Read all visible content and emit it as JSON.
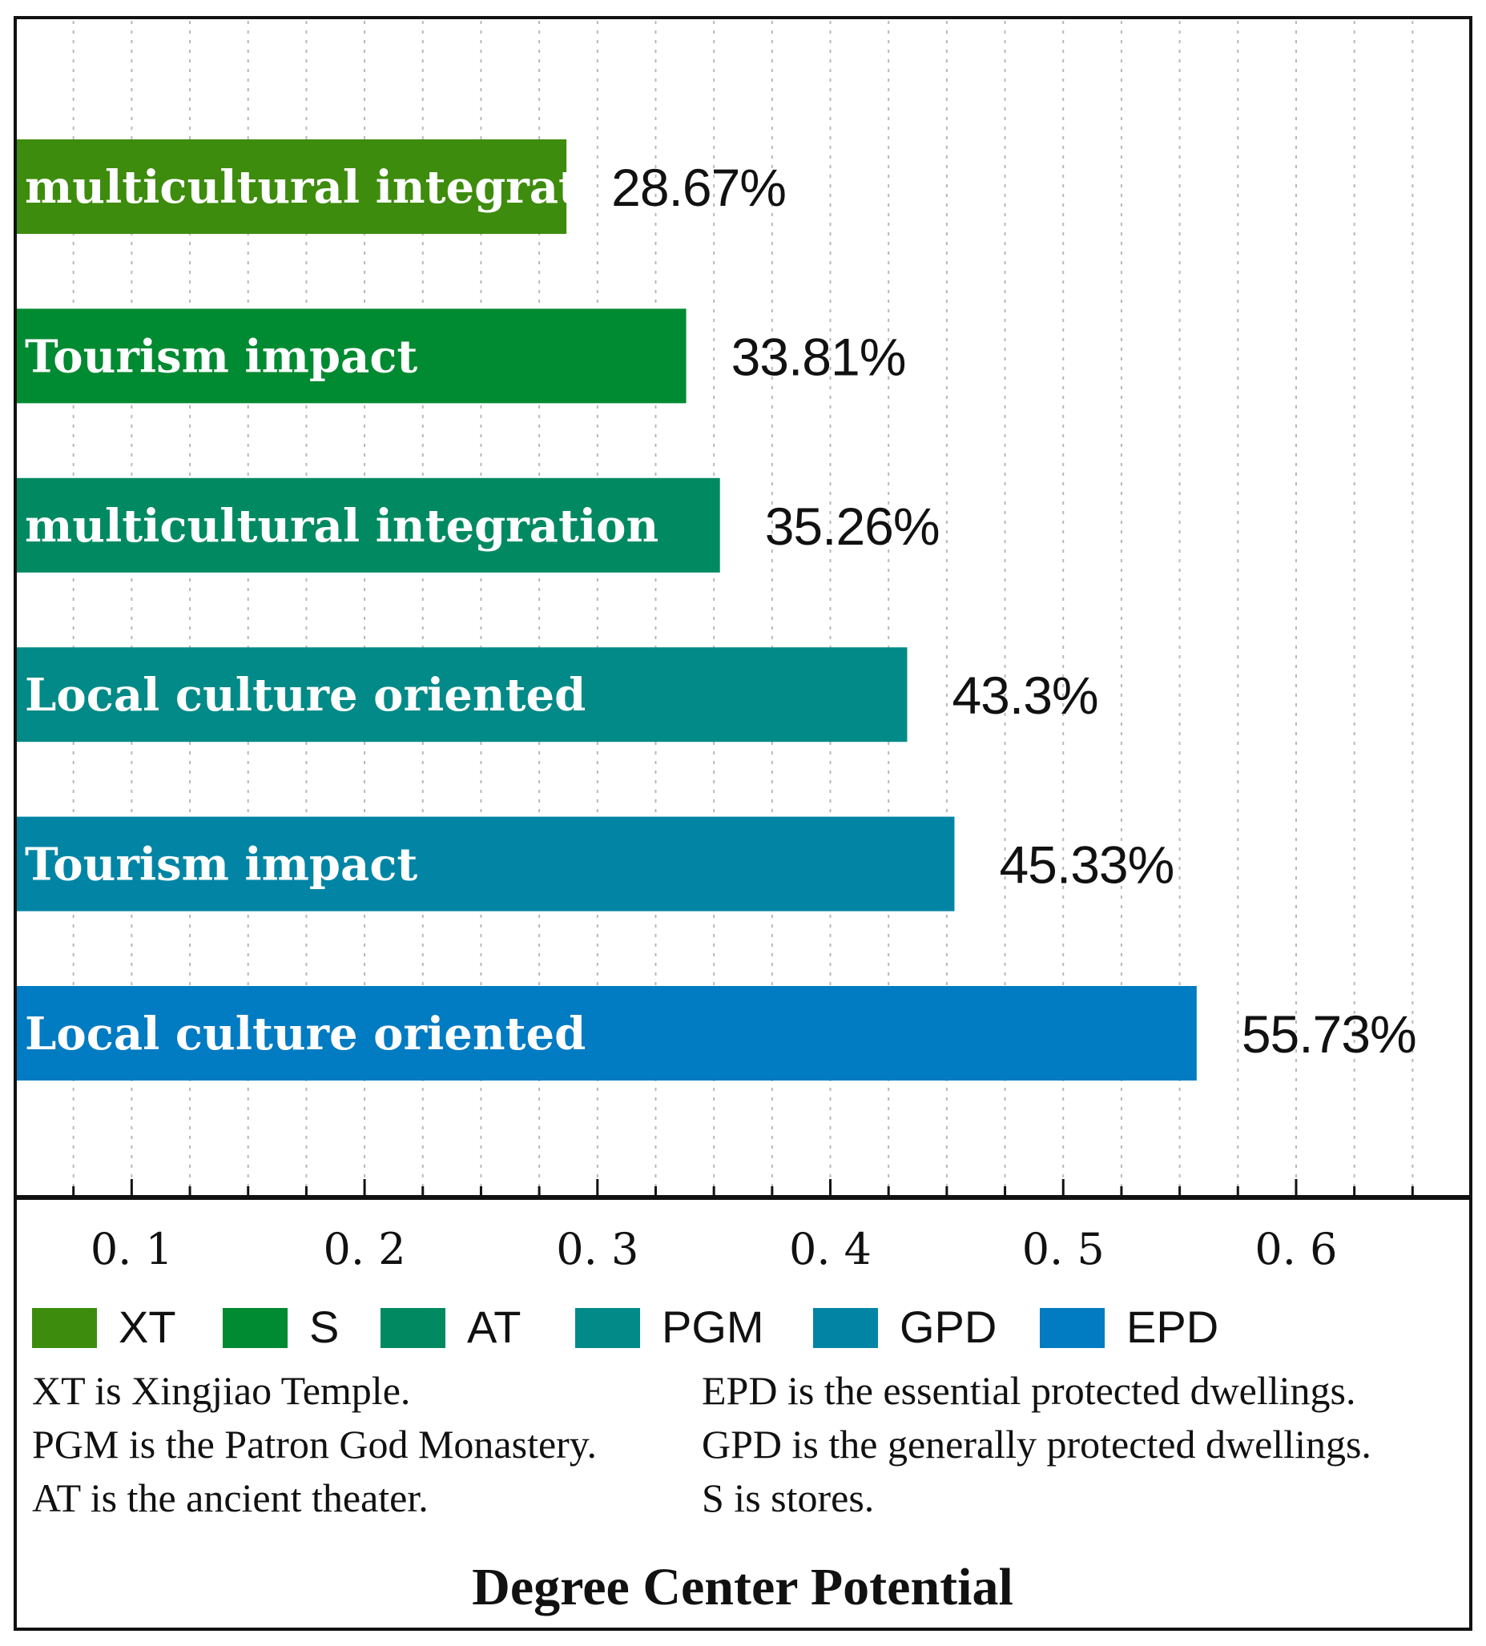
{
  "chart_data": {
    "type": "bar",
    "orientation": "horizontal",
    "xlabel": "Degree Center Potential",
    "xlim": [
      0.05,
      0.675
    ],
    "xticks": [
      0.1,
      0.2,
      0.3,
      0.4,
      0.5,
      0.6
    ],
    "xtick_labels": [
      "0. 1",
      "0. 2",
      "0. 3",
      "0. 4",
      "0. 5",
      "0. 6"
    ],
    "grid": "vertical dotted",
    "bars": [
      {
        "category": "XT",
        "label": "multicultural integration",
        "value": 0.2867,
        "data_label": "28.67%",
        "color": "#3e8c0e"
      },
      {
        "category": "S",
        "label": "Tourism impact",
        "value": 0.3381,
        "data_label": "33.81%",
        "color": "#008a31"
      },
      {
        "category": "AT",
        "label": "multicultural integration",
        "value": 0.3526,
        "data_label": "35.26%",
        "color": "#018a62"
      },
      {
        "category": "PGM",
        "label": "Local culture oriented",
        "value": 0.433,
        "data_label": "43.3%",
        "color": "#018a87"
      },
      {
        "category": "GPD",
        "label": "Tourism impact",
        "value": 0.4533,
        "data_label": "45.33%",
        "color": "#0285a5"
      },
      {
        "category": "EPD",
        "label": "Local culture oriented",
        "value": 0.5573,
        "data_label": "55.73%",
        "color": "#017bc2"
      }
    ],
    "legend": [
      {
        "label": "XT",
        "color": "#3e8c0e"
      },
      {
        "label": "S",
        "color": "#008a31"
      },
      {
        "label": "AT",
        "color": "#018a62"
      },
      {
        "label": "PGM",
        "color": "#018a87"
      },
      {
        "label": "GPD",
        "color": "#0285a5"
      },
      {
        "label": "EPD",
        "color": "#017bc2"
      }
    ],
    "notes_left": [
      "XT is Xingjiao Temple.",
      "PGM is the Patron God Monastery.",
      "AT is the ancient theater."
    ],
    "notes_right": [
      "EPD is the essential protected dwellings.",
      "GPD is the generally protected dwellings.",
      "S is stores."
    ]
  }
}
